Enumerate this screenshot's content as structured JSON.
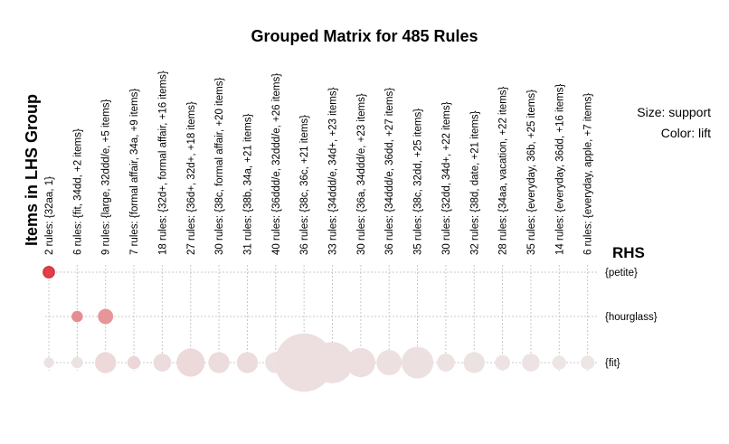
{
  "chart_data": {
    "type": "scatter",
    "title": "Grouped Matrix for 485 Rules",
    "ylabel": "Items in LHS Group",
    "rhs_title": "RHS",
    "legend": {
      "size_label": "Size: support",
      "color_label": "Color: lift",
      "placement": "top-right"
    },
    "lhs_groups": [
      "2 rules: {32aa, 1}",
      "6 rules: {fit, 34dd, +2 items}",
      "9 rules: {large, 32ddd/e, +5 items}",
      "7 rules: {formal affair, 34a, +9 items}",
      "18 rules: {32d+, formal affair, +16 items}",
      "27 rules: {36d+, 32d+, +18 items}",
      "30 rules: {38c, formal affair, +20 items}",
      "31 rules: {38b, 34a, +21 items}",
      "40 rules: {36ddd/e, 32ddd/e, +26 items}",
      "36 rules: {38c, 36c, +21 items}",
      "33 rules: {34ddd/e, 34d+, +23 items}",
      "30 rules: {36a, 34ddd/e, +23 items}",
      "36 rules: {34ddd/e, 36dd, +27 items}",
      "35 rules: {38c, 32dd, +25 items}",
      "30 rules: {32dd, 34d+, +22 items}",
      "32 rules: {38d, date, +21 items}",
      "28 rules: {34aa, vacation, +22 items}",
      "35 rules: {everyday, 36b, +25 items}",
      "14 rules: {everyday, 36dd, +16 items}",
      "6 rules: {everyday, apple, +7 items}"
    ],
    "rhs_items": [
      "{petite}",
      "{hourglass}",
      "{fit}"
    ],
    "points": [
      {
        "lhs": 0,
        "rhs": 0,
        "support": 0.12,
        "lift": 1.0
      },
      {
        "lhs": 1,
        "rhs": 1,
        "support": 0.12,
        "lift": 0.55
      },
      {
        "lhs": 2,
        "rhs": 1,
        "support": 0.22,
        "lift": 0.5
      },
      {
        "lhs": 0,
        "rhs": 2,
        "support": 0.1,
        "lift": 0.05
      },
      {
        "lhs": 1,
        "rhs": 2,
        "support": 0.12,
        "lift": 0.05
      },
      {
        "lhs": 2,
        "rhs": 2,
        "support": 0.42,
        "lift": 0.1
      },
      {
        "lhs": 3,
        "rhs": 2,
        "support": 0.16,
        "lift": 0.12
      },
      {
        "lhs": 4,
        "rhs": 2,
        "support": 0.3,
        "lift": 0.08
      },
      {
        "lhs": 5,
        "rhs": 2,
        "support": 0.75,
        "lift": 0.1
      },
      {
        "lhs": 6,
        "rhs": 2,
        "support": 0.42,
        "lift": 0.08
      },
      {
        "lhs": 7,
        "rhs": 2,
        "support": 0.42,
        "lift": 0.08
      },
      {
        "lhs": 8,
        "rhs": 2,
        "support": 0.42,
        "lift": 0.06
      },
      {
        "lhs": 9,
        "rhs": 2,
        "support": 3.2,
        "lift": 0.07
      },
      {
        "lhs": 10,
        "rhs": 2,
        "support": 1.6,
        "lift": 0.07
      },
      {
        "lhs": 11,
        "rhs": 2,
        "support": 0.8,
        "lift": 0.07
      },
      {
        "lhs": 12,
        "rhs": 2,
        "support": 0.6,
        "lift": 0.06
      },
      {
        "lhs": 13,
        "rhs": 2,
        "support": 0.95,
        "lift": 0.06
      },
      {
        "lhs": 14,
        "rhs": 2,
        "support": 0.3,
        "lift": 0.05
      },
      {
        "lhs": 15,
        "rhs": 2,
        "support": 0.42,
        "lift": 0.05
      },
      {
        "lhs": 16,
        "rhs": 2,
        "support": 0.22,
        "lift": 0.04
      },
      {
        "lhs": 17,
        "rhs": 2,
        "support": 0.3,
        "lift": 0.04
      },
      {
        "lhs": 18,
        "rhs": 2,
        "support": 0.18,
        "lift": 0.03
      },
      {
        "lhs": 19,
        "rhs": 2,
        "support": 0.18,
        "lift": 0.03
      }
    ],
    "colors": {
      "high_lift": "#e04048",
      "low_lift": "#eeeaea",
      "grid": "#c8c8c8"
    },
    "grid": true
  }
}
